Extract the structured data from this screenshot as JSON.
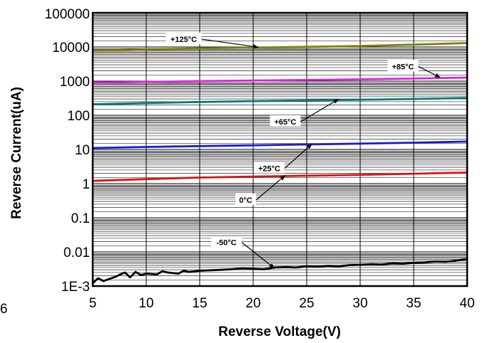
{
  "chart_data": {
    "type": "line",
    "xlabel": "Reverse Voltage(V)",
    "ylabel": "Reverse Current(uA)",
    "xlim": [
      5,
      40
    ],
    "ylim": [
      0.001,
      100000
    ],
    "yscale": "log",
    "grid": true,
    "x_ticks": [
      "5",
      "10",
      "15",
      "20",
      "25",
      "30",
      "35",
      "40"
    ],
    "y_ticks": [
      "100000",
      "10000",
      "1000",
      "100",
      "10",
      "1",
      "0.1",
      "0.01",
      "1E-3"
    ],
    "edge_fragment": "6",
    "series": [
      {
        "name": "+125°C",
        "color": "#808000",
        "x": [
          5,
          10,
          15,
          20,
          25,
          30,
          35,
          40
        ],
        "values": [
          7800,
          8500,
          9100,
          9600,
          10100,
          10700,
          11700,
          13000
        ]
      },
      {
        "name": "+85°C",
        "color": "#e21ee2",
        "x": [
          5,
          10,
          15,
          20,
          25,
          30,
          35,
          40
        ],
        "values": [
          900,
          950,
          1000,
          1040,
          1080,
          1130,
          1190,
          1270
        ]
      },
      {
        "name": "+65°C",
        "color": "#007b7b",
        "x": [
          5,
          10,
          15,
          20,
          25,
          30,
          35,
          40
        ],
        "values": [
          210,
          228,
          245,
          260,
          272,
          285,
          300,
          320
        ]
      },
      {
        "name": "+25°C",
        "color": "#1a1ad8",
        "x": [
          5,
          10,
          15,
          20,
          25,
          30,
          35,
          40
        ],
        "values": [
          11,
          11.8,
          12.5,
          13.2,
          14,
          14.8,
          15.8,
          17
        ]
      },
      {
        "name": "0°C",
        "color": "#e01010",
        "x": [
          5,
          10,
          15,
          20,
          25,
          30,
          35,
          40
        ],
        "values": [
          1.2,
          1.35,
          1.5,
          1.6,
          1.7,
          1.8,
          1.95,
          2.1
        ]
      },
      {
        "name": "-50°C",
        "color": "#000000",
        "x": [
          5,
          5.5,
          6,
          6.5,
          7,
          8,
          8.5,
          9,
          9.5,
          10,
          11,
          11.5,
          12,
          13,
          13.5,
          14,
          15,
          16,
          17,
          18,
          19,
          20,
          21,
          22,
          23,
          24,
          25,
          26,
          27,
          28,
          29,
          30,
          31,
          32,
          33,
          34,
          35,
          36,
          37,
          38,
          39,
          40
        ],
        "values": [
          0.0012,
          0.0017,
          0.0014,
          0.0016,
          0.0018,
          0.0025,
          0.0018,
          0.0026,
          0.0021,
          0.0023,
          0.0022,
          0.0027,
          0.0025,
          0.0023,
          0.0028,
          0.0026,
          0.0028,
          0.0029,
          0.003,
          0.0031,
          0.0033,
          0.0032,
          0.0031,
          0.0035,
          0.0036,
          0.0035,
          0.0038,
          0.0037,
          0.0039,
          0.0038,
          0.0041,
          0.0042,
          0.0044,
          0.0043,
          0.0046,
          0.0045,
          0.0048,
          0.0049,
          0.0052,
          0.0051,
          0.0056,
          0.0062
        ]
      }
    ],
    "annotations": [
      {
        "text": "+125°C",
        "series": 0,
        "x": 13.5,
        "y": 17000,
        "x_end": 20.5,
        "y_end": 9800
      },
      {
        "text": "+85°C",
        "series": 1,
        "x": 34,
        "y": 2700,
        "x_end": 37.5,
        "y_end": 1270
      },
      {
        "text": "+65°C",
        "series": 2,
        "x": 23,
        "y": 65,
        "x_end": 28,
        "y_end": 300
      },
      {
        "text": "+25°C",
        "series": 3,
        "x": 21.5,
        "y": 2.8,
        "x_end": 25.5,
        "y_end": 14.5
      },
      {
        "text": "0°C",
        "series": 4,
        "x": 19.3,
        "y": 0.33,
        "x_end": 23,
        "y_end": 1.75
      },
      {
        "text": "-50°C",
        "series": 5,
        "x": 17.5,
        "y": 0.019,
        "x_end": 22,
        "y_end": 0.0033
      }
    ]
  }
}
